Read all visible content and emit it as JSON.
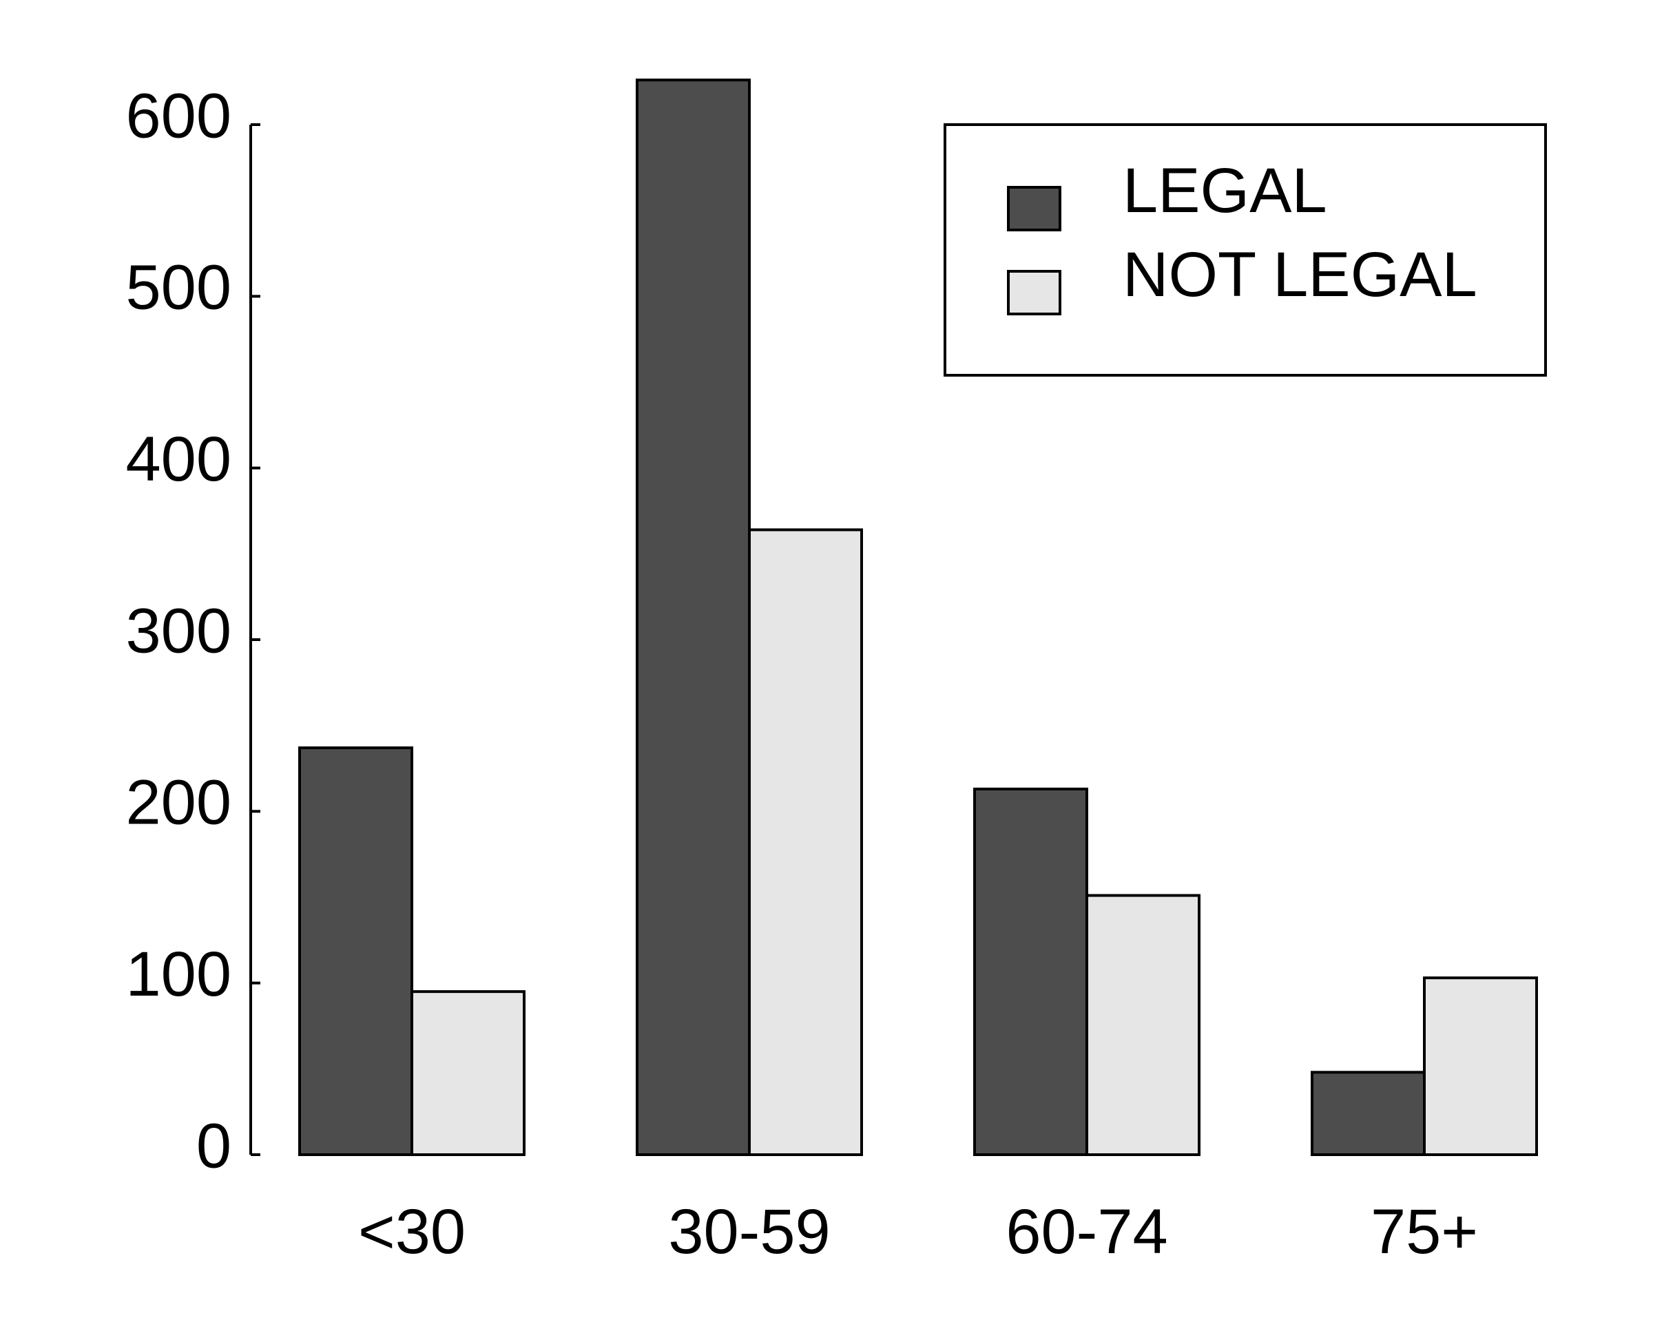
{
  "chart_data": {
    "type": "bar",
    "title": "",
    "xlabel": "",
    "ylabel": "",
    "categories": [
      "<30",
      "30-59",
      "60-74",
      "75+"
    ],
    "series": [
      {
        "name": "LEGAL",
        "values": [
          237,
          626,
          213,
          48
        ],
        "color": "#4d4d4d"
      },
      {
        "name": "NOT LEGAL",
        "values": [
          95,
          364,
          151,
          103
        ],
        "color": "#e6e6e6"
      }
    ],
    "ylim": [
      0,
      600
    ],
    "yticks": [
      0,
      100,
      200,
      300,
      400,
      500,
      600
    ],
    "grid": false,
    "legend_position": "top-right"
  }
}
